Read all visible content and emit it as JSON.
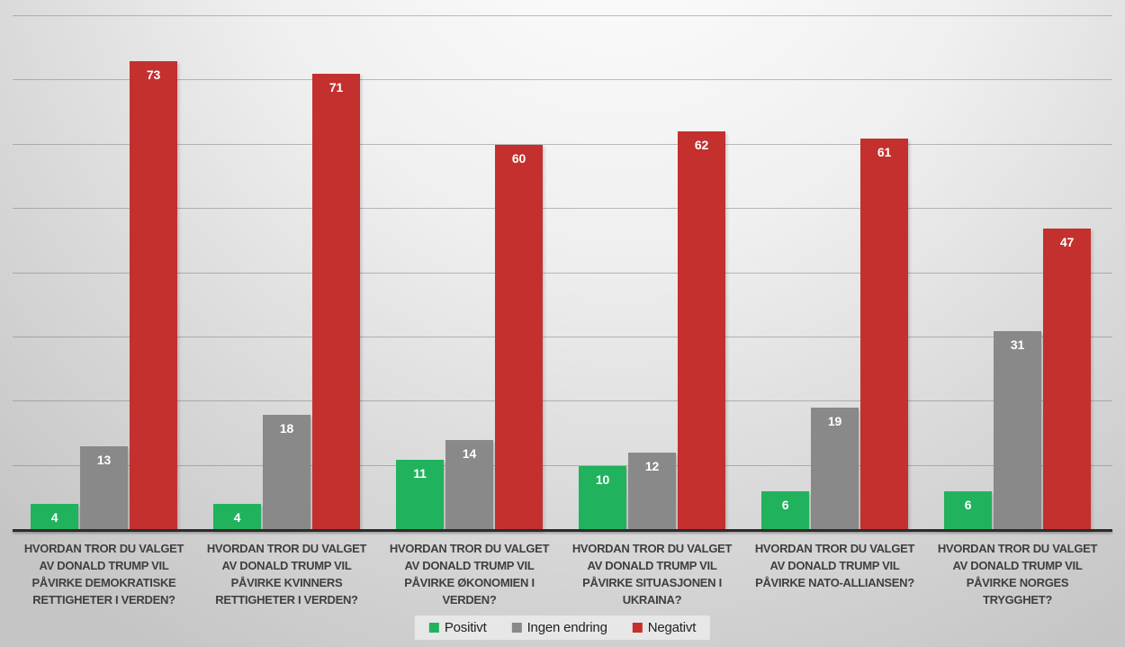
{
  "chart_data": {
    "type": "bar",
    "title": "",
    "xlabel": "",
    "ylabel": "",
    "ylim": [
      0,
      80
    ],
    "gridline_step": 10,
    "grid": true,
    "legend_position": "bottom",
    "categories": [
      "HVORDAN TROR DU VALGET AV DONALD TRUMP VIL PÅVIRKE DEMOKRATISKE RETTIGHETER I VERDEN?",
      "HVORDAN TROR DU VALGET AV DONALD TRUMP VIL PÅVIRKE KVINNERS RETTIGHETER I VERDEN?",
      "HVORDAN TROR DU VALGET AV DONALD TRUMP VIL PÅVIRKE ØKONOMIEN I VERDEN?",
      "HVORDAN TROR DU VALGET AV DONALD TRUMP VIL PÅVIRKE SITUASJONEN I UKRAINA?",
      "HVORDAN TROR DU VALGET AV DONALD TRUMP VIL PÅVIRKE NATO-ALLIANSEN?",
      "HVORDAN TROR DU VALGET AV DONALD TRUMP VIL PÅVIRKE NORGES TRYGGHET?"
    ],
    "series": [
      {
        "name": "Positivt",
        "color": "#21b25d",
        "values": [
          4,
          4,
          11,
          10,
          6,
          6
        ]
      },
      {
        "name": "Ingen endring",
        "color": "#898989",
        "values": [
          13,
          18,
          14,
          12,
          19,
          31
        ]
      },
      {
        "name": "Negativt",
        "color": "#c3302e",
        "values": [
          73,
          71,
          60,
          62,
          61,
          47
        ]
      }
    ],
    "colors": {
      "background_light": "#ffffff",
      "background_dark": "#c5c5c5",
      "axis_line": "#2b2b2b",
      "gridline": "#696969",
      "category_text": "#3f3f3f",
      "value_label_text": "#ffffff",
      "legend_background": "#e7e7e7"
    }
  }
}
